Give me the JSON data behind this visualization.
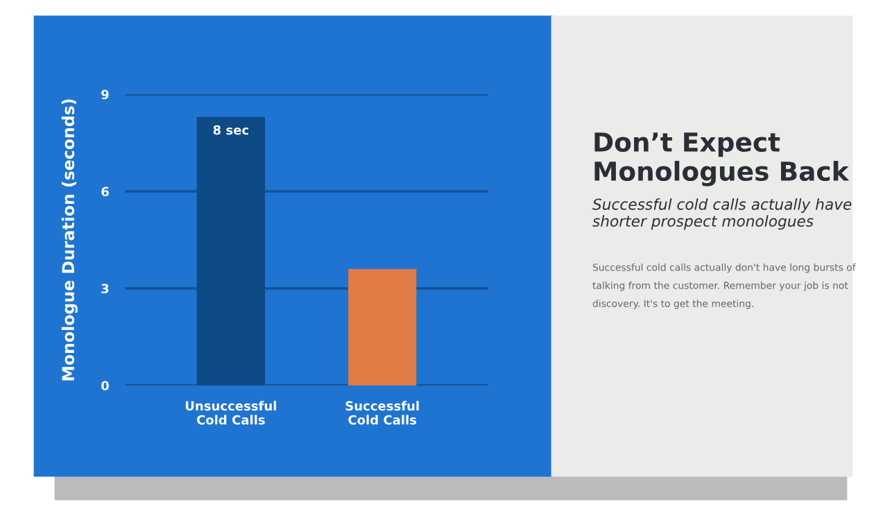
{
  "chart_data": {
    "type": "bar",
    "title": "Don’t Expect Monologues Back",
    "subtitle": "Successful cold calls actually have shorter prospect monologues",
    "ylabel": "Monologue Duration (seconds)",
    "categories": [
      "Unsuccessful\nCold Calls",
      "Successful\nCold Calls"
    ],
    "values": [
      8.3,
      3.6
    ],
    "colors": [
      "#0d4a86",
      "#e07b45"
    ],
    "value_labels": [
      "8 sec",
      null
    ],
    "ylim": [
      0,
      9
    ],
    "yticks": [
      0,
      3,
      6,
      9
    ],
    "grid": "y",
    "annotations": [
      "Successful cold calls actually don't have long bursts of talking from the customer. Remember your job is not discovery. It's to get the meeting."
    ]
  }
}
